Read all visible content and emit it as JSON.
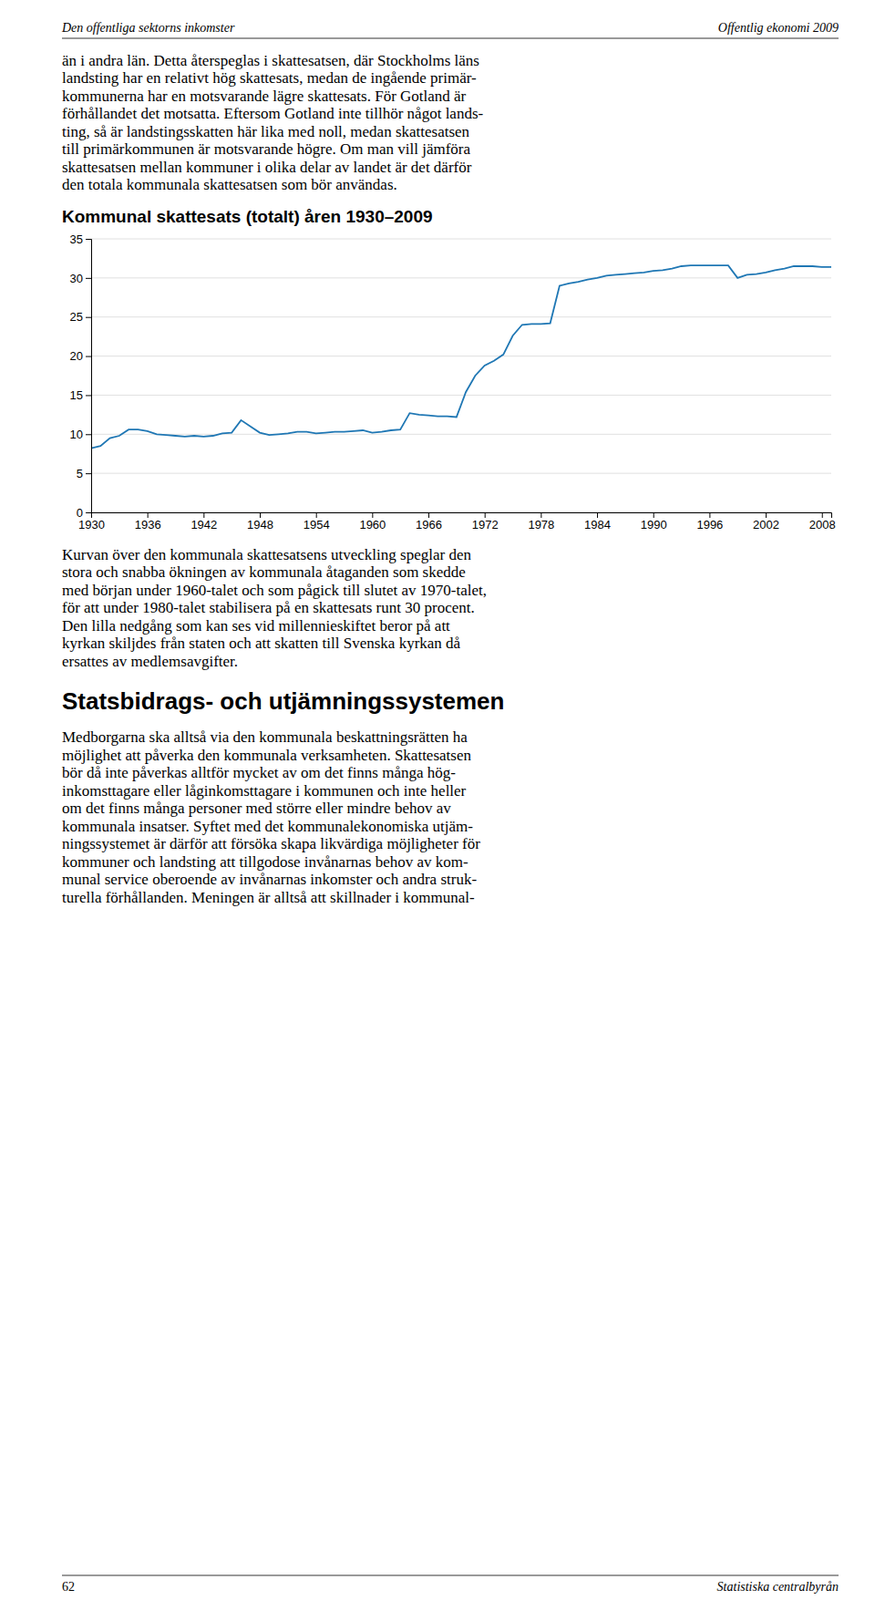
{
  "header_left": "Den offentliga sektorns inkomster",
  "header_right": "Offentlig ekonomi 2009",
  "footer_left": "62",
  "footer_right": "Statistiska centralbyrån",
  "para1_lines": [
    "än i andra län. Detta återspeglas i skattesatsen, där Stockholms läns",
    "landsting har en relativt hög skattesats, medan de ingående primär-",
    "kommunerna har en motsvarande lägre skattesats. För Gotland är",
    "förhållandet det motsatta. Eftersom Gotland inte tillhör något lands-",
    "ting, så är landstingsskatten här lika med noll, medan skattesatsen",
    "till primärkommunen är motsvarande högre. Om man vill jämföra",
    "skattesatsen mellan kommuner i olika delar av landet är det därför",
    "den totala kommunala skattesatsen som bör användas."
  ],
  "chart_data": {
    "type": "line",
    "title": "Kommunal skattesats (totalt) åren 1930–2009",
    "x": [
      1930,
      1931,
      1932,
      1933,
      1934,
      1935,
      1936,
      1937,
      1938,
      1939,
      1940,
      1941,
      1942,
      1943,
      1944,
      1945,
      1946,
      1947,
      1948,
      1949,
      1950,
      1951,
      1952,
      1953,
      1954,
      1955,
      1956,
      1957,
      1958,
      1959,
      1960,
      1961,
      1962,
      1963,
      1964,
      1965,
      1966,
      1967,
      1968,
      1969,
      1970,
      1971,
      1972,
      1973,
      1974,
      1975,
      1976,
      1977,
      1978,
      1979,
      1980,
      1981,
      1982,
      1983,
      1984,
      1985,
      1986,
      1987,
      1988,
      1989,
      1990,
      1991,
      1992,
      1993,
      1994,
      1995,
      1996,
      1997,
      1998,
      1999,
      2000,
      2001,
      2002,
      2003,
      2004,
      2005,
      2006,
      2007,
      2008,
      2009
    ],
    "values": [
      8.2,
      8.5,
      9.5,
      9.8,
      10.6,
      10.6,
      10.4,
      10.0,
      9.9,
      9.8,
      9.7,
      9.8,
      9.7,
      9.8,
      10.1,
      10.2,
      11.8,
      11.0,
      10.2,
      9.9,
      10.0,
      10.1,
      10.3,
      10.3,
      10.1,
      10.2,
      10.3,
      10.3,
      10.4,
      10.5,
      10.2,
      10.3,
      10.5,
      10.6,
      12.7,
      12.5,
      12.4,
      12.3,
      12.3,
      12.2,
      15.4,
      17.5,
      18.8,
      19.4,
      20.2,
      22.6,
      24.0,
      24.1,
      24.1,
      24.2,
      29.0,
      29.3,
      29.5,
      29.8,
      30.0,
      30.3,
      30.4,
      30.5,
      30.6,
      30.7,
      30.9,
      31.0,
      31.2,
      31.5,
      31.6,
      31.6,
      31.6,
      31.6,
      31.6,
      30.0,
      30.4,
      30.5,
      30.7,
      31.0,
      31.2,
      31.5,
      31.5,
      31.5,
      31.4,
      31.4
    ],
    "xlim": [
      1930,
      2009
    ],
    "xticks": [
      1930,
      1936,
      1942,
      1948,
      1954,
      1960,
      1966,
      1972,
      1978,
      1984,
      1990,
      1996,
      2002,
      2008
    ],
    "ylim": [
      0,
      35
    ],
    "yticks": [
      0,
      5,
      10,
      15,
      20,
      25,
      30,
      35
    ],
    "grid": true
  },
  "para2_lines": [
    "Kurvan över den kommunala skattesatsens utveckling speglar den",
    "stora och snabba ökningen av kommunala åtaganden som skedde",
    "med början under 1960-talet och som pågick till slutet av 1970-talet,",
    "för att under 1980-talet stabilisera på en skattesats runt 30 procent.",
    "Den lilla nedgång som kan ses vid millennieskiftet beror på att",
    "kyrkan skiljdes från staten och att skatten till Svenska kyrkan då",
    "ersattes av medlemsavgifter."
  ],
  "section_title": "Statsbidrags- och utjämningssystemen",
  "para3_lines": [
    "Medborgarna ska alltså via den kommunala beskattningsrätten ha",
    "möjlighet att påverka den kommunala verksamheten. Skattesatsen",
    "bör då inte påverkas alltför mycket av om det finns många hög-",
    "inkomsttagare eller låginkomsttagare i kommunen och inte heller",
    "om det finns många personer med större eller mindre behov av",
    "kommunala insatser. Syftet med det kommunalekonomiska utjäm-",
    "ningssystemet är därför att försöka skapa likvärdiga möjligheter för",
    "kommuner och landsting att tillgodose invånarnas behov av kom-",
    "munal service oberoende av invånarnas inkomster och andra struk-",
    "turella förhållanden. Meningen är alltså att skillnader i kommunal-"
  ]
}
